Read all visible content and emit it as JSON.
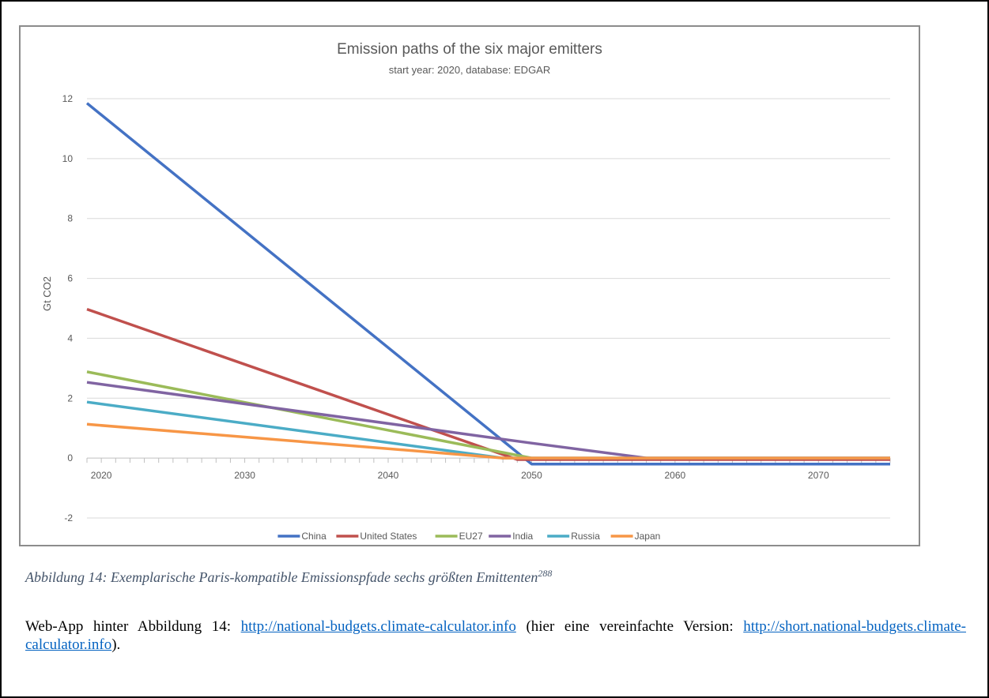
{
  "chart_data": {
    "type": "line",
    "title": "Emission paths of the six major emitters",
    "subtitle": "start year: 2020, database: EDGAR",
    "xlabel": "",
    "ylabel": "Gt CO2",
    "xlim": [
      2019,
      2075
    ],
    "ylim": [
      -2,
      12
    ],
    "x_ticks": [
      2020,
      2030,
      2040,
      2050,
      2060,
      2070
    ],
    "y_ticks": [
      -2,
      0,
      2,
      4,
      6,
      8,
      10,
      12
    ],
    "grid": true,
    "legend_position": "bottom",
    "series": [
      {
        "name": "China",
        "color": "#4472c4",
        "points": [
          [
            2019,
            11.85
          ],
          [
            2050,
            -0.2
          ],
          [
            2075,
            -0.2
          ]
        ]
      },
      {
        "name": "United States",
        "color": "#c0504d",
        "points": [
          [
            2019,
            4.97
          ],
          [
            2049,
            -0.05
          ],
          [
            2075,
            -0.05
          ]
        ]
      },
      {
        "name": "EU27",
        "color": "#9bbb59",
        "points": [
          [
            2019,
            2.88
          ],
          [
            2050,
            0.0
          ],
          [
            2075,
            0.0
          ]
        ]
      },
      {
        "name": "India",
        "color": "#8064a2",
        "points": [
          [
            2019,
            2.53
          ],
          [
            2050,
            0.5
          ],
          [
            2058,
            0.0
          ],
          [
            2075,
            0.0
          ]
        ]
      },
      {
        "name": "Russia",
        "color": "#4bacc6",
        "points": [
          [
            2019,
            1.87
          ],
          [
            2048,
            0.0
          ],
          [
            2075,
            0.0
          ]
        ]
      },
      {
        "name": "Japan",
        "color": "#f79646",
        "points": [
          [
            2019,
            1.13
          ],
          [
            2048,
            0.0
          ],
          [
            2075,
            0.0
          ]
        ]
      }
    ]
  },
  "caption": {
    "text": "Abbildung 14: Exemplarische Paris-kompatible Emissionspfade sechs größten Emittenten",
    "footnote": "288"
  },
  "body": {
    "prefix": "Web-App hinter Abbildung 14: ",
    "link1": "http://national-budgets.climate-calculator.info",
    "middle": " (hier eine vereinfachte Version: ",
    "link2": "http://short.national-budgets.climate-calculator.info",
    "suffix": ")."
  }
}
